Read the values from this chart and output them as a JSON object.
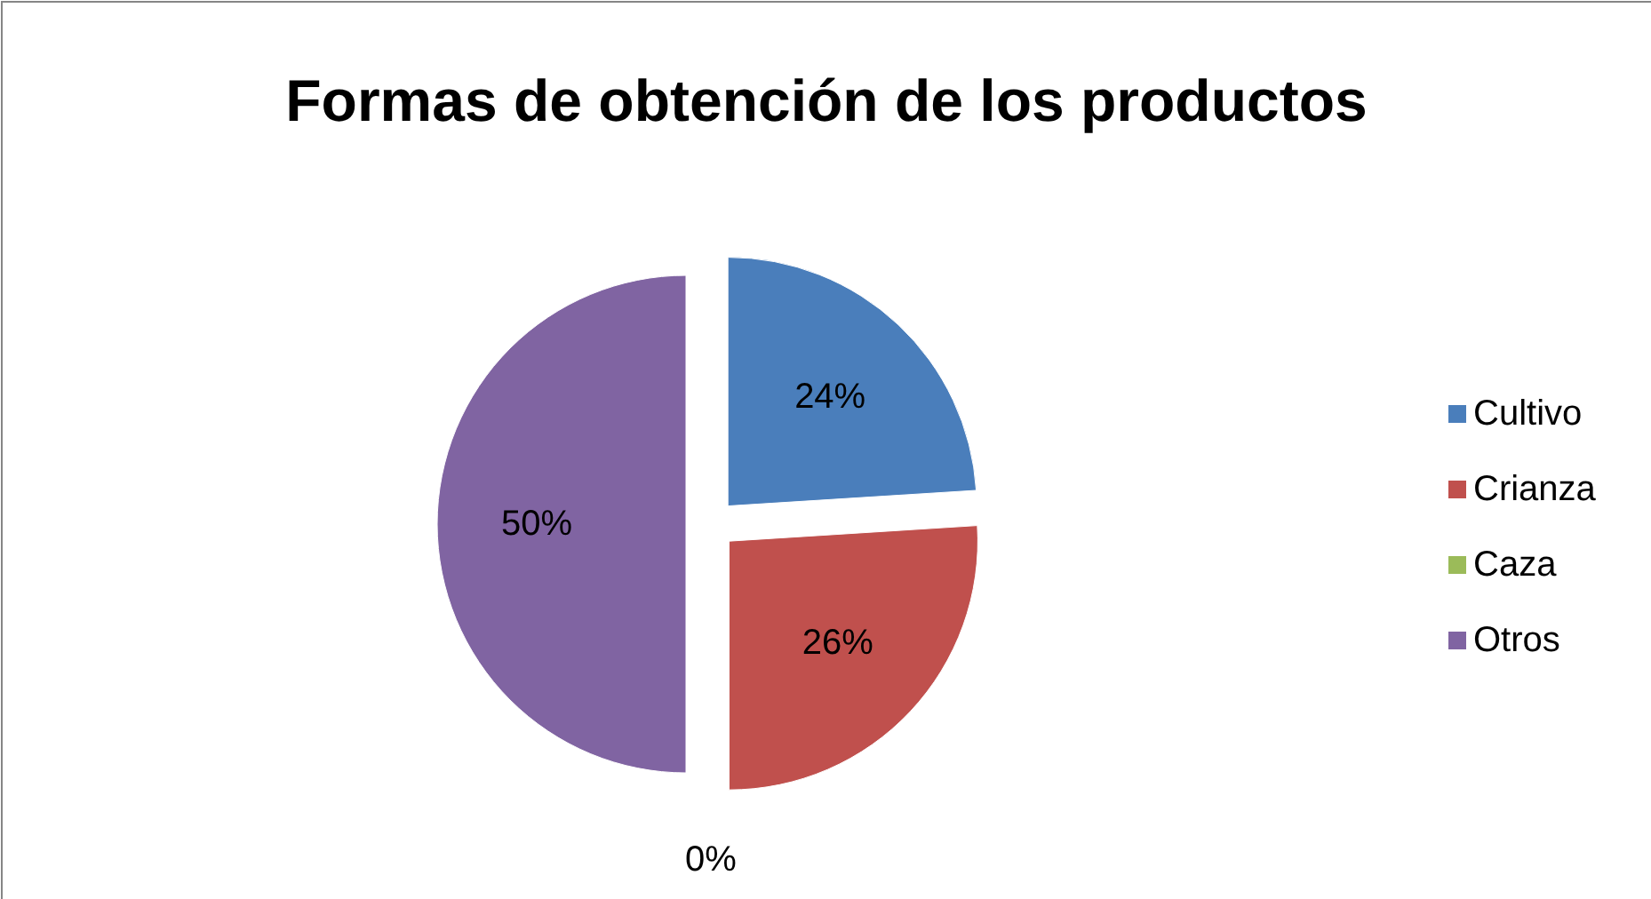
{
  "chart_data": {
    "type": "pie",
    "title": "Formas de obtención de los productos",
    "categories": [
      "Cultivo",
      "Crianza",
      "Caza",
      "Otros"
    ],
    "values": [
      24,
      26,
      0,
      50
    ],
    "value_labels": [
      "24%",
      "26%",
      "0%",
      "50%"
    ],
    "colors": [
      "#4a7ebb",
      "#c0504d",
      "#9bbb59",
      "#8064a2"
    ],
    "legend": "right"
  }
}
